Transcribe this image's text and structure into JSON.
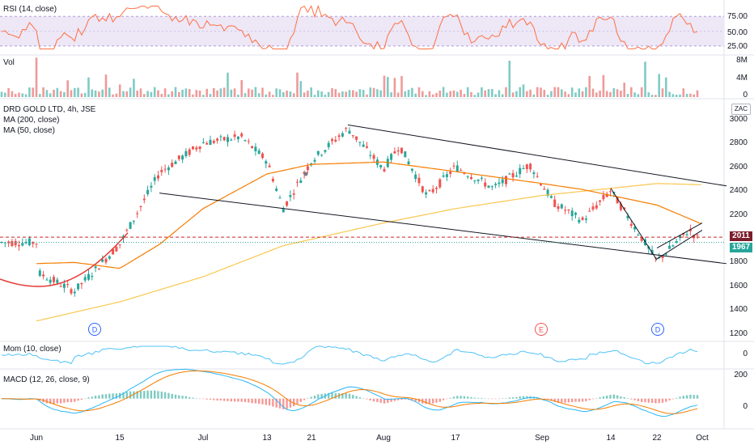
{
  "chart_data": [
    {
      "type": "line",
      "title": "RSI (14, close)",
      "yticks": [
        "75.00",
        "50.00",
        "25.00"
      ],
      "band": [
        30,
        70
      ],
      "ylim": [
        20,
        90
      ],
      "colors": {
        "line": "#ff7043",
        "band": "#ede7f6",
        "band_edge": "#b39ddb"
      }
    },
    {
      "type": "bar",
      "title": "Vol",
      "yticks": [
        "8M",
        "4M",
        "0"
      ],
      "ylim": [
        0,
        8
      ],
      "unit": "M",
      "colors": {
        "up": "#ef9a9a",
        "down": "#80cbc4"
      }
    },
    {
      "type": "candlestick",
      "title": "DRD GOLD LTD, 4h, JSE",
      "legend": [
        "MA (200, close)",
        "MA (50, close)"
      ],
      "yticks": [
        "3000",
        "2800",
        "2600",
        "2400",
        "2200",
        "2000",
        "1800",
        "1600",
        "1400",
        "1200"
      ],
      "ylim": [
        1200,
        3000
      ],
      "last_price": "1967",
      "reference_price": "2011",
      "currency_label": "ZAC",
      "event_markers": [
        "D",
        "E",
        "D"
      ],
      "anchors": [
        {
          "date": "Jun",
          "price": 1720
        },
        {
          "date": "Jun 8",
          "price": 1560
        },
        {
          "date": "Jun 15",
          "price": 1950
        },
        {
          "date": "Jun 22",
          "price": 2550
        },
        {
          "date": "Jul",
          "price": 2800
        },
        {
          "date": "Jul 8",
          "price": 2850
        },
        {
          "date": "Jul 13",
          "price": 2650
        },
        {
          "date": "Jul 17",
          "price": 2250
        },
        {
          "date": "Jul 21",
          "price": 2650
        },
        {
          "date": "Jul 27",
          "price": 2920
        },
        {
          "date": "Aug",
          "price": 2580
        },
        {
          "date": "Aug 5",
          "price": 2780
        },
        {
          "date": "Aug 10",
          "price": 2350
        },
        {
          "date": "Aug 17",
          "price": 2600
        },
        {
          "date": "Aug 24",
          "price": 2420
        },
        {
          "date": "Aug 31",
          "price": 2620
        },
        {
          "date": "Sep 3",
          "price": 2300
        },
        {
          "date": "Sep 10",
          "price": 2150
        },
        {
          "date": "Sep 14",
          "price": 2400
        },
        {
          "date": "Sep 22",
          "price": 1810
        },
        {
          "date": "Sep 28",
          "price": 2070
        },
        {
          "date": "Oct",
          "price": 1967
        }
      ],
      "ma200": [
        {
          "date": "Jun",
          "price": 1310
        },
        {
          "date": "Jun 15",
          "price": 1470
        },
        {
          "date": "Jul",
          "price": 1680
        },
        {
          "date": "Jul 17",
          "price": 1940
        },
        {
          "date": "Aug",
          "price": 2130
        },
        {
          "date": "Aug 17",
          "price": 2250
        },
        {
          "date": "Sep",
          "price": 2360
        },
        {
          "date": "Sep 22",
          "price": 2460
        },
        {
          "date": "Oct",
          "price": 2450
        }
      ],
      "ma50": [
        {
          "date": "Jun",
          "price": 1790
        },
        {
          "date": "Jun 8",
          "price": 1800
        },
        {
          "date": "Jun 15",
          "price": 1750
        },
        {
          "date": "Jun 22",
          "price": 1950
        },
        {
          "date": "Jul",
          "price": 2250
        },
        {
          "date": "Jul 13",
          "price": 2540
        },
        {
          "date": "Jul 21",
          "price": 2620
        },
        {
          "date": "Aug",
          "price": 2640
        },
        {
          "date": "Aug 17",
          "price": 2560
        },
        {
          "date": "Sep",
          "price": 2460
        },
        {
          "date": "Sep 10",
          "price": 2410
        },
        {
          "date": "Sep 22",
          "price": 2280
        },
        {
          "date": "Oct",
          "price": 2120
        }
      ],
      "trendlines": [
        {
          "from": {
            "date": "Jul 27",
            "price": 2950
          },
          "to": {
            "date": "Oct+",
            "price": 2440
          }
        },
        {
          "from": {
            "date": "Jun 22",
            "price": 2380
          },
          "to": {
            "date": "Oct+",
            "price": 1790
          }
        },
        {
          "from": {
            "date": "Sep 14",
            "price": 2420
          },
          "to": {
            "date": "Sep 22",
            "price": 1820
          }
        },
        {
          "from": {
            "date": "Sep 22",
            "price": 1830
          },
          "to": {
            "date": "Oct",
            "price": 2070
          }
        },
        {
          "from": {
            "date": "Sep 22",
            "price": 1920
          },
          "to": {
            "date": "Oct",
            "price": 2130
          }
        }
      ],
      "colors": {
        "up": "#26a69a",
        "down": "#ef5350",
        "ma200": "#f9c74f",
        "ma50": "#f57c00",
        "tag_ref": "#7b1e2b",
        "tag_last": "#26a69a"
      }
    },
    {
      "type": "line",
      "title": "Mom (10, close)",
      "yticks": [
        "0"
      ],
      "colors": {
        "line": "#4fc3f7"
      }
    },
    {
      "type": "line",
      "title": "MACD (12, 26, close, 9)",
      "yticks": [
        "200",
        "0"
      ],
      "ylim": [
        -280,
        260
      ],
      "colors": {
        "macd": "#29b6f6",
        "signal": "#f57c00",
        "hist_up": "#26a69a",
        "hist_down": "#ef5350"
      }
    }
  ],
  "x_axis": {
    "ticks": [
      "Jun",
      "15",
      "Jul",
      "13",
      "21",
      "Aug",
      "17",
      "Sep",
      "14",
      "22",
      "Oct"
    ]
  }
}
